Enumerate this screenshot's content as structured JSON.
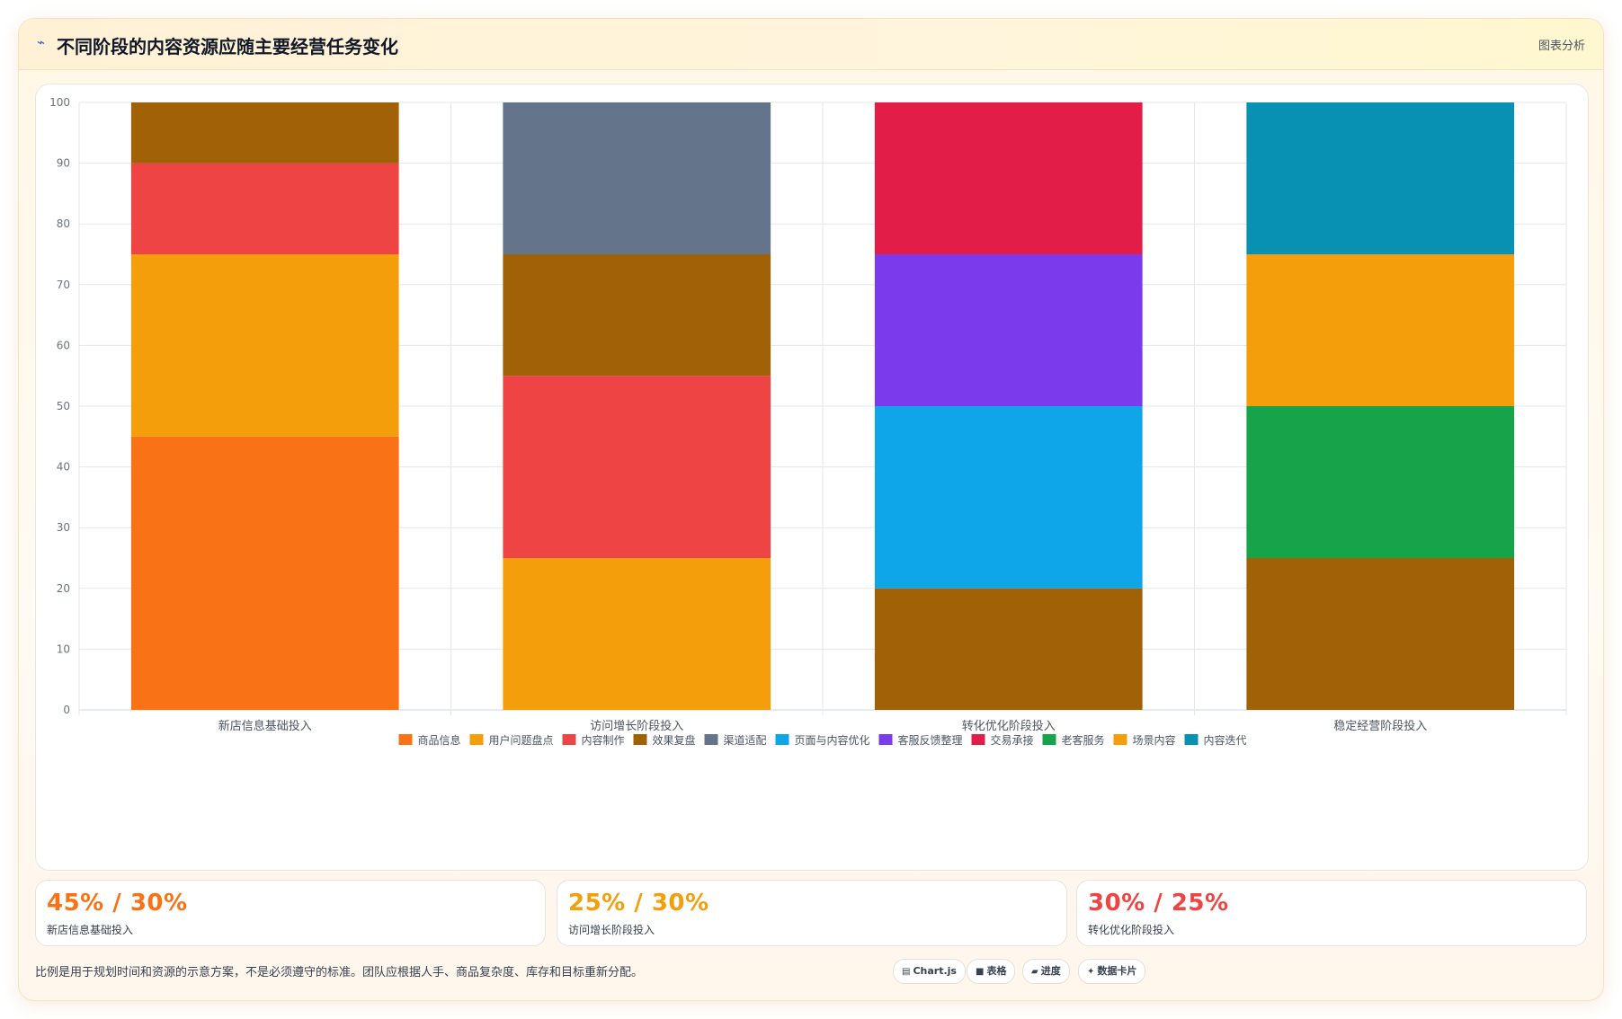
{
  "header": {
    "icon": "sparkline-icon",
    "title": "不同阶段的内容资源应随主要经营任务变化",
    "link": "图表分析"
  },
  "chart_data": {
    "type": "bar",
    "stacked": true,
    "title": "",
    "xlabel": "",
    "ylabel": "",
    "ylim": [
      0,
      100
    ],
    "yticks": [
      0,
      10,
      20,
      30,
      40,
      50,
      60,
      70,
      80,
      90,
      100
    ],
    "grid": true,
    "legend_position": "bottom",
    "categories": [
      "新店信息基础投入",
      "访问增长阶段投入",
      "转化优化阶段投入",
      "稳定经营阶段投入"
    ],
    "series": [
      {
        "name": "商品信息",
        "color": "#f97316",
        "values": [
          45,
          0,
          0,
          0
        ]
      },
      {
        "name": "用户问题盘点",
        "color": "#f59e0b",
        "values": [
          30,
          25,
          0,
          0
        ]
      },
      {
        "name": "内容制作",
        "color": "#ef4444",
        "values": [
          15,
          30,
          0,
          0
        ]
      },
      {
        "name": "效果复盘",
        "color": "#a16207",
        "values": [
          10,
          20,
          20,
          25
        ]
      },
      {
        "name": "渠道适配",
        "color": "#64748b",
        "values": [
          0,
          25,
          0,
          0
        ]
      },
      {
        "name": "页面与内容优化",
        "color": "#0ea5e9",
        "values": [
          0,
          0,
          30,
          0
        ]
      },
      {
        "name": "客服反馈整理",
        "color": "#7c3aed",
        "values": [
          0,
          0,
          25,
          0
        ]
      },
      {
        "name": "交易承接",
        "color": "#e11d48",
        "values": [
          0,
          0,
          25,
          0
        ]
      },
      {
        "name": "老客服务",
        "color": "#16a34a",
        "values": [
          0,
          0,
          0,
          25
        ]
      },
      {
        "name": "场景内容",
        "color": "#f59e0b",
        "values": [
          0,
          0,
          0,
          25
        ]
      },
      {
        "name": "内容迭代",
        "color": "#0891b2",
        "values": [
          0,
          0,
          0,
          25
        ]
      }
    ]
  },
  "stats": [
    {
      "value": "45% / 30%",
      "label": "新店信息基础投入",
      "color": "#f97316"
    },
    {
      "value": "25% / 30%",
      "label": "访问增长阶段投入",
      "color": "#f59e0b"
    },
    {
      "value": "30% / 25%",
      "label": "转化优化阶段投入",
      "color": "#ef4444"
    }
  ],
  "note": "比例是用于规划时间和资源的示意方案，不是必须遵守的标准。团队应根据人手、商品复杂度、库存和目标重新分配。",
  "tags": [
    {
      "icon": "chart-icon",
      "glyph": "▤",
      "label": "Chart.js"
    },
    {
      "icon": "table-icon",
      "glyph": "■",
      "label": "表格"
    },
    {
      "icon": "progress-icon",
      "glyph": "▰",
      "label": "进度"
    },
    {
      "icon": "card-icon",
      "glyph": "✦",
      "label": "数据卡片"
    }
  ]
}
